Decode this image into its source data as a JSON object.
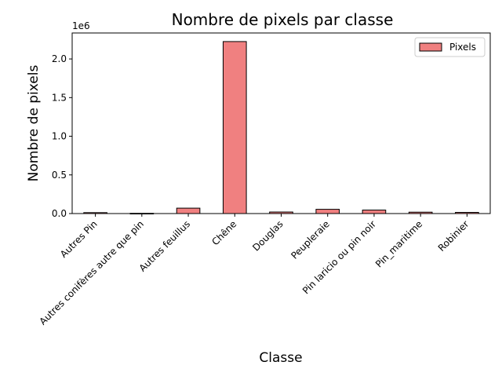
{
  "chart_data": {
    "type": "bar",
    "title": "Nombre de pixels par classe",
    "xlabel": "Classe",
    "ylabel": "Nombre de pixels",
    "y_offset_label": "1e6",
    "categories": [
      "Autres Pin",
      "Autres conifères autre que pin",
      "Autres feuillus",
      "Chêne",
      "Douglas",
      "Peupleraie",
      "Pin laricio ou pin noir",
      "Pin_maritime",
      "Robinier"
    ],
    "series": [
      {
        "name": "Pixels",
        "values": [
          12000,
          3000,
          70000,
          2225000,
          20000,
          55000,
          45000,
          18000,
          15000
        ]
      }
    ],
    "yticks": [
      0,
      500000,
      1000000,
      1500000,
      2000000
    ],
    "ytick_labels": [
      "0.0",
      "0.5",
      "1.0",
      "1.5",
      "2.0"
    ],
    "ylim": [
      0,
      2336000
    ],
    "legend_position": "top-right",
    "grid": false,
    "colors": {
      "bar_fill": "#f08080",
      "bar_edge": "#000000",
      "axis": "#000000"
    }
  }
}
